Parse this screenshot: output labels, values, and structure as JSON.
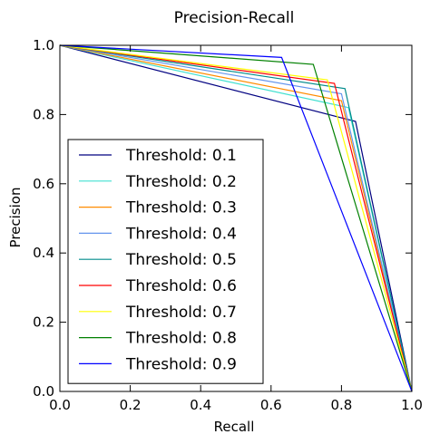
{
  "chart_data": {
    "type": "line",
    "title": "Precision-Recall",
    "xlabel": "Recall",
    "ylabel": "Precision",
    "xlim": [
      0.0,
      1.0
    ],
    "ylim": [
      0.0,
      1.0
    ],
    "xticks": [
      "0.0",
      "0.2",
      "0.4",
      "0.6",
      "0.8",
      "1.0"
    ],
    "yticks": [
      "0.0",
      "0.2",
      "0.4",
      "0.6",
      "0.8",
      "1.0"
    ],
    "grid": false,
    "legend_position": "lower-left",
    "series": [
      {
        "name": "Threshold: 0.1",
        "color": "#000080",
        "x": [
          0.0,
          0.84,
          1.0
        ],
        "y": [
          1.0,
          0.78,
          0.0
        ]
      },
      {
        "name": "Threshold: 0.2",
        "color": "#40e0d0",
        "x": [
          0.0,
          0.82,
          1.0
        ],
        "y": [
          1.0,
          0.82,
          0.0
        ]
      },
      {
        "name": "Threshold: 0.3",
        "color": "#ff8c00",
        "x": [
          0.0,
          0.8,
          1.0
        ],
        "y": [
          1.0,
          0.84,
          0.0
        ]
      },
      {
        "name": "Threshold: 0.4",
        "color": "#6495ed",
        "x": [
          0.0,
          0.8,
          1.0
        ],
        "y": [
          1.0,
          0.86,
          0.0
        ]
      },
      {
        "name": "Threshold: 0.5",
        "color": "#008b8b",
        "x": [
          0.0,
          0.81,
          1.0
        ],
        "y": [
          1.0,
          0.875,
          0.0
        ]
      },
      {
        "name": "Threshold: 0.6",
        "color": "#ff0000",
        "x": [
          0.0,
          0.78,
          1.0
        ],
        "y": [
          1.0,
          0.89,
          0.0
        ]
      },
      {
        "name": "Threshold: 0.7",
        "color": "#ffff00",
        "x": [
          0.0,
          0.76,
          1.0
        ],
        "y": [
          1.0,
          0.9,
          0.0
        ]
      },
      {
        "name": "Threshold: 0.8",
        "color": "#008000",
        "x": [
          0.0,
          0.72,
          1.0
        ],
        "y": [
          1.0,
          0.945,
          0.0
        ]
      },
      {
        "name": "Threshold: 0.9",
        "color": "#0000ff",
        "x": [
          0.0,
          0.63,
          1.0
        ],
        "y": [
          1.0,
          0.965,
          0.0
        ]
      }
    ]
  }
}
